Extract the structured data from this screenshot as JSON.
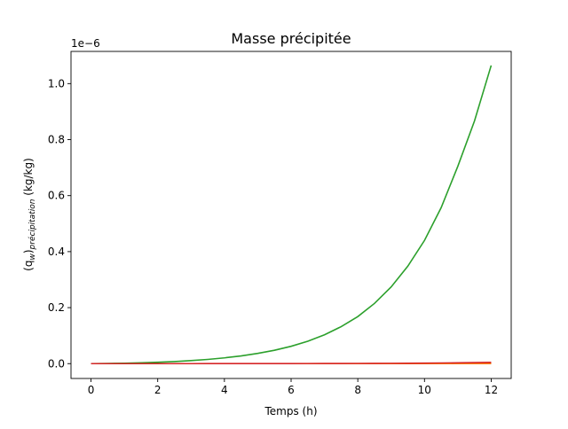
{
  "chart_data": {
    "type": "line",
    "title": "Masse précipitée",
    "xlabel": "Temps (h)",
    "ylabel_main": "(q",
    "ylabel_sub_w": "w",
    "ylabel_close": ")",
    "ylabel_sub_precip": "précipitation",
    "ylabel_unit": " (kg/kg)",
    "offset_text": "1e−6",
    "xlim": [
      -0.6,
      12.6
    ],
    "ylim": [
      -0.053,
      1.115
    ],
    "xticks": [
      0,
      2,
      4,
      6,
      8,
      10,
      12
    ],
    "xtick_labels": [
      "0",
      "2",
      "4",
      "6",
      "8",
      "10",
      "12"
    ],
    "yticks": [
      0.0,
      0.2,
      0.4,
      0.6,
      0.8,
      1.0
    ],
    "ytick_labels": [
      "0.0",
      "0.2",
      "0.4",
      "0.6",
      "0.8",
      "1.0"
    ],
    "grid": false,
    "x": [
      0,
      0.5,
      1,
      1.5,
      2,
      2.5,
      3,
      3.5,
      4,
      4.5,
      5,
      5.5,
      6,
      6.5,
      7,
      7.5,
      8,
      8.5,
      9,
      9.5,
      10,
      10.5,
      11,
      11.5,
      12
    ],
    "series": [
      {
        "color": "#1f77b4",
        "values": [
          0.0,
          0.0,
          0.0,
          0.0,
          0.0,
          0.0,
          0.0,
          0.0,
          0.0,
          0.0,
          0.0,
          0.0,
          0.0,
          0.0,
          0.0,
          0.0,
          0.0,
          0.0,
          0.0,
          0.0,
          0.0,
          0.0,
          0.0,
          0.0,
          0.0
        ]
      },
      {
        "color": "#ff7f0e",
        "values": [
          0.0,
          0.0,
          0.0,
          0.0,
          0.0,
          0.0,
          0.0,
          0.0,
          0.0,
          0.0,
          0.0,
          0.0,
          0.0,
          0.0,
          0.0,
          0.0,
          0.0,
          0.0,
          0.0,
          0.0,
          0.0,
          0.0,
          0.0,
          0.0,
          0.0
        ]
      },
      {
        "color": "#2ca02c",
        "values": [
          0.0,
          0.0006,
          0.0016,
          0.003,
          0.0049,
          0.0075,
          0.0108,
          0.0151,
          0.0206,
          0.0276,
          0.0365,
          0.0477,
          0.062,
          0.08,
          0.103,
          0.132,
          0.168,
          0.215,
          0.274,
          0.348,
          0.44,
          0.557,
          0.705,
          0.867,
          1.065
        ]
      },
      {
        "color": "#d62728",
        "values": [
          0.0,
          0.0,
          0.0,
          0.0,
          0.0,
          0.0,
          0.0,
          0.0001,
          0.0001,
          0.0001,
          0.0002,
          0.0002,
          0.0003,
          0.0004,
          0.0005,
          0.0006,
          0.0008,
          0.001,
          0.0012,
          0.0015,
          0.0019,
          0.0024,
          0.003,
          0.0037,
          0.0045
        ]
      }
    ]
  }
}
